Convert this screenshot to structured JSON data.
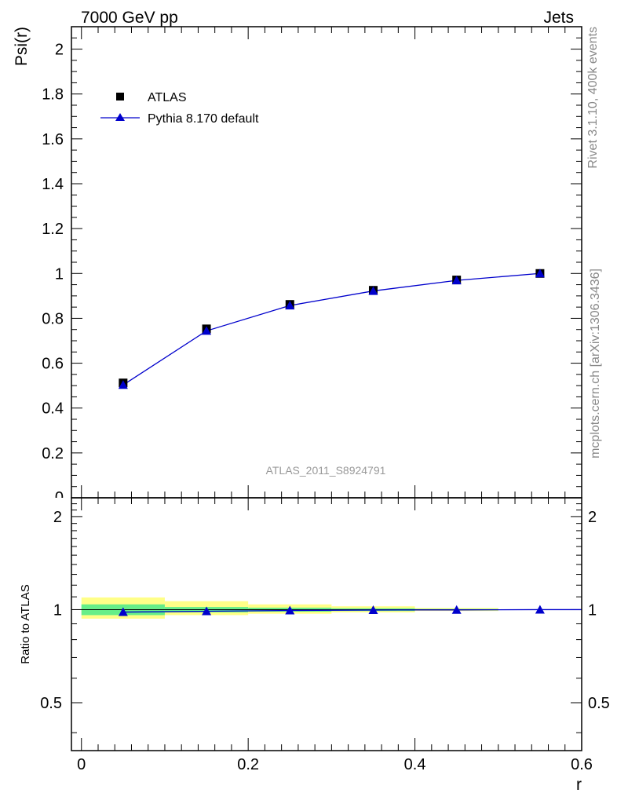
{
  "header": {
    "left": "7000 GeV pp",
    "right": "Jets"
  },
  "side_text": {
    "rivet": "Rivet 3.1.10,  400k events",
    "source": "mcplots.cern.ch [arXiv:1306.3436]"
  },
  "analysis_label": "ATLAS_2011_S8924791",
  "chart_data": [
    {
      "type": "scatter",
      "panel": "main",
      "ylabel": "Psi(r)",
      "xlim": [
        -0.012,
        0.6
      ],
      "ylim": [
        0,
        2.1
      ],
      "yticks": [
        "0",
        "0.2",
        "0.4",
        "0.6",
        "0.8",
        "1",
        "1.2",
        "1.4",
        "1.6",
        "1.8",
        "2"
      ],
      "legend_position": "top-left",
      "series": [
        {
          "name": "ATLAS",
          "marker": "square",
          "color": "#000000",
          "x": [
            0.05,
            0.15,
            0.25,
            0.35,
            0.45,
            0.55
          ],
          "y": [
            0.512,
            0.753,
            0.862,
            0.925,
            0.971,
            1.0
          ]
        },
        {
          "name": "Pythia 8.170 default",
          "marker": "triangle",
          "line": true,
          "color": "#0000cc",
          "x": [
            0.05,
            0.15,
            0.25,
            0.35,
            0.45,
            0.55
          ],
          "y": [
            0.503,
            0.744,
            0.857,
            0.922,
            0.969,
            1.0
          ]
        }
      ]
    },
    {
      "type": "line",
      "panel": "ratio",
      "ylabel": "Ratio to ATLAS",
      "xlabel": "r",
      "xlim": [
        -0.012,
        0.6
      ],
      "ylim": [
        0.35,
        2.3
      ],
      "yticks": [
        "0.5",
        "1",
        "2"
      ],
      "xticks": [
        "0",
        "0.2",
        "0.4",
        "0.6"
      ],
      "uncertainty_bands": [
        {
          "x": [
            0.0,
            0.1
          ],
          "inner": [
            0.96,
            1.04
          ],
          "outer": [
            0.935,
            1.095
          ],
          "x_outer_extra": [
            0.0,
            0.1
          ]
        },
        {
          "x": [
            0.1,
            0.2
          ],
          "inner": [
            0.98,
            1.02
          ],
          "outer": [
            0.96,
            1.065
          ]
        },
        {
          "x": [
            0.2,
            0.3
          ],
          "inner": [
            0.985,
            1.015
          ],
          "outer": [
            0.97,
            1.04
          ]
        },
        {
          "x": [
            0.3,
            0.4
          ],
          "inner": [
            0.99,
            1.01
          ],
          "outer": [
            0.98,
            1.025
          ]
        },
        {
          "x": [
            0.4,
            0.5
          ],
          "inner": [
            0.995,
            1.005
          ],
          "outer": [
            0.99,
            1.012
          ]
        }
      ],
      "band_colors": {
        "inner": "#66ee88",
        "outer": "#ffff88"
      },
      "series": [
        {
          "name": "Pythia 8.170 default",
          "marker": "triangle",
          "color": "#0000cc",
          "x": [
            0.05,
            0.15,
            0.25,
            0.35,
            0.45,
            0.55
          ],
          "y": [
            0.982,
            0.988,
            0.994,
            0.997,
            0.998,
            1.0
          ]
        }
      ]
    }
  ]
}
